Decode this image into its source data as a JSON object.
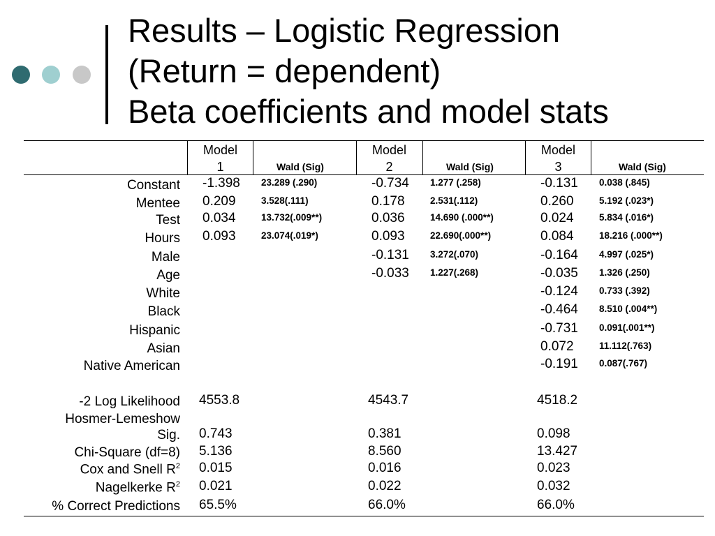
{
  "title": {
    "line1": "Results – Logistic Regression",
    "line2": "(Return = dependent)",
    "line3": "Beta coefficients and model stats"
  },
  "table": {
    "headers": [
      {
        "model": "Model",
        "num": "1",
        "wald": "Wald (Sig)"
      },
      {
        "model": "Model",
        "num": "2",
        "wald": "Wald (Sig)"
      },
      {
        "model": "Model",
        "num": "3",
        "wald": "Wald (Sig)"
      }
    ],
    "rows": [
      {
        "label": "Constant",
        "m1": "-1.398",
        "w1": "23.289 (.290)",
        "m2": "-0.734",
        "w2": "1.277 (.258)",
        "m3": "-0.131",
        "w3": "0.038 (.845)"
      },
      {
        "label": "Mentee",
        "m1": "0.209",
        "w1": "3.528(.111)",
        "m2": "0.178",
        "w2": "2.531(.112)",
        "m3": "0.260",
        "w3": "5.192 (.023*)"
      },
      {
        "label": "Test",
        "m1": "0.034",
        "w1": "13.732(.009**)",
        "m2": "0.036",
        "w2": "14.690 (.000**)",
        "m3": "0.024",
        "w3": "5.834 (.016*)"
      },
      {
        "label": "Hours",
        "m1": "0.093",
        "w1": "23.074(.019*)",
        "m2": "0.093",
        "w2": "22.690(.000**)",
        "m3": "0.084",
        "w3": "18.216 (.000**)"
      },
      {
        "label": "Male",
        "m1": "",
        "w1": "",
        "m2": "-0.131",
        "w2": "3.272(.070)",
        "m3": "-0.164",
        "w3": "4.997 (.025*)"
      },
      {
        "label": "Age",
        "m1": "",
        "w1": "",
        "m2": "-0.033",
        "w2": "1.227(.268)",
        "m3": "-0.035",
        "w3": "1.326 (.250)"
      },
      {
        "label": "White",
        "m1": "",
        "w1": "",
        "m2": "",
        "w2": "",
        "m3": "-0.124",
        "w3": "0.733 (.392)"
      },
      {
        "label": "Black",
        "m1": "",
        "w1": "",
        "m2": "",
        "w2": "",
        "m3": "-0.464",
        "w3": "8.510 (.004**)"
      },
      {
        "label": "Hispanic",
        "m1": "",
        "w1": "",
        "m2": "",
        "w2": "",
        "m3": "-0.731",
        "w3": "0.091(.001**)"
      },
      {
        "label": "Asian",
        "m1": "",
        "w1": "",
        "m2": "",
        "w2": "",
        "m3": "0.072",
        "w3": "11.112(.763)"
      },
      {
        "label": "Native American",
        "m1": "",
        "w1": "",
        "m2": "",
        "w2": "",
        "m3": "-0.191",
        "w3": "0.087(.767)"
      }
    ],
    "stats": [
      {
        "label": "-2 Log Likelihood",
        "m1": "4553.8",
        "m2": "4543.7",
        "m3": "4518.2"
      },
      {
        "label": "Hosmer-Lemeshow",
        "m1": "",
        "m2": "",
        "m3": ""
      },
      {
        "label": "Sig.",
        "m1": "0.743",
        "m2": "0.381",
        "m3": "0.098"
      },
      {
        "label": "Chi-Square (df=8)",
        "m1": "5.136",
        "m2": "8.560",
        "m3": "13.427"
      },
      {
        "label": "Cox and Snell R",
        "sup": "2",
        "m1": "0.015",
        "m2": "0.016",
        "m3": "0.023"
      },
      {
        "label": "Nagelkerke R",
        "sup": "2",
        "m1": "0.021",
        "m2": "0.022",
        "m3": "0.032"
      },
      {
        "label": "% Correct Predictions",
        "m1": "65.5%",
        "m2": "66.0%",
        "m3": "66.0%"
      }
    ]
  }
}
